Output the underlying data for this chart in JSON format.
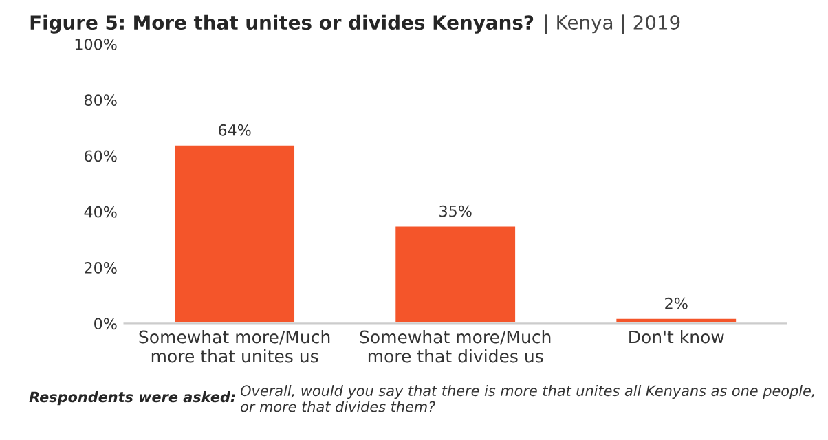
{
  "chart_data": {
    "type": "bar",
    "title": "Figure 5: More that unites or divides Kenyans?",
    "subtitle": "| Kenya | 2019",
    "categories": [
      "Somewhat more/Much\nmore that unites us",
      "Somewhat more/Much\nmore that divides us",
      "Don't know"
    ],
    "values": [
      64,
      35,
      2
    ],
    "color": "#f4552a",
    "data_labels": true,
    "value_labels": [
      "64%",
      "35%",
      "2%"
    ],
    "ylim": [
      0,
      100
    ],
    "yticks": [
      {
        "value": 0,
        "label": "0%"
      },
      {
        "value": 20,
        "label": "20%"
      },
      {
        "value": 40,
        "label": "40%"
      },
      {
        "value": 60,
        "label": "60%"
      },
      {
        "value": 80,
        "label": "80%"
      },
      {
        "value": 100,
        "label": "100%"
      }
    ],
    "grid": false,
    "legend": false,
    "annotations": [
      "Respondents were asked:",
      "Overall, would you say that there is more that unites all Kenyans as one people, or more that divides them?"
    ]
  }
}
